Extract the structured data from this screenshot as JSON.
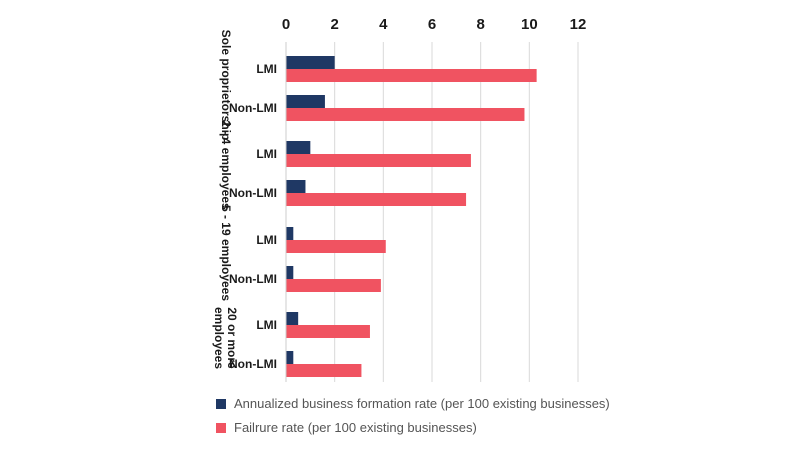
{
  "chart_data": {
    "type": "bar",
    "orientation": "horizontal",
    "groups": [
      "Sole proprietorship",
      "2 - 4 employees",
      "5 - 19 employees",
      "20 or more employees"
    ],
    "categories": [
      "LMI",
      "Non-LMI",
      "LMI",
      "Non-LMI",
      "LMI",
      "Non-LMI",
      "LMI",
      "Non-LMI"
    ],
    "series": [
      {
        "name": "Annualized business formation rate (per 100 existing businesses)",
        "color": "#1f3864",
        "values": [
          2.0,
          1.6,
          1.0,
          0.8,
          0.3,
          0.3,
          0.5,
          0.3
        ]
      },
      {
        "name": "Failrure rate (per 100 existing businesses)",
        "color": "#f05361",
        "values": [
          10.3,
          9.8,
          7.6,
          7.4,
          4.1,
          3.9,
          3.45,
          3.1
        ]
      }
    ],
    "xlim": [
      0,
      12
    ],
    "xticks": [
      "0",
      "2",
      "4",
      "6",
      "8",
      "10",
      "12"
    ],
    "grid": true,
    "axis_position": "top",
    "legend_position": "bottom"
  }
}
